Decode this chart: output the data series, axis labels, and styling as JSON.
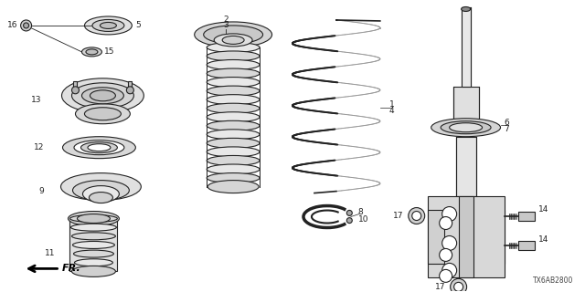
{
  "bg_color": "#ffffff",
  "line_color": "#222222",
  "footer_code": "TX6AB2800",
  "figsize": [
    6.4,
    3.2
  ],
  "dpi": 100
}
